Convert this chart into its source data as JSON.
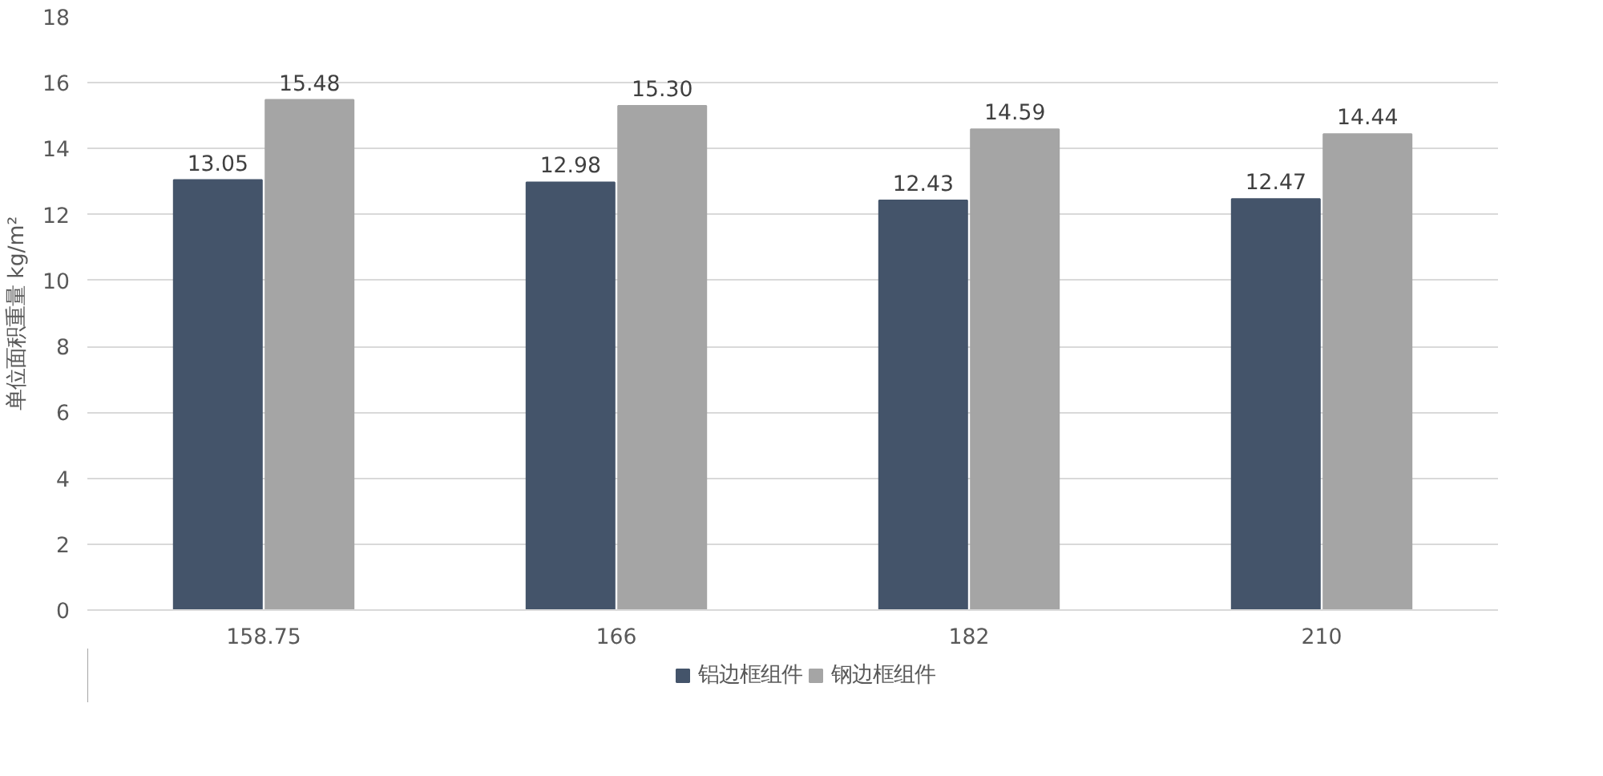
{
  "chart_data": {
    "type": "bar",
    "ylabel": "单位面积重量 kg/m²",
    "categories": [
      "158.75",
      "166",
      "182",
      "210"
    ],
    "series": [
      {
        "name": "铝边框组件",
        "color": "#44546a",
        "values": [
          13.05,
          12.98,
          12.43,
          12.47
        ],
        "value_labels": [
          "13.05",
          "12.98",
          "12.43",
          "12.47"
        ]
      },
      {
        "name": "钢边框组件",
        "color": "#a5a5a5",
        "values": [
          15.48,
          15.3,
          14.59,
          14.44
        ],
        "value_labels": [
          "15.48",
          "15.30",
          "14.59",
          "14.44"
        ]
      }
    ],
    "ylim": [
      0,
      18
    ],
    "yticks": [
      0,
      2,
      4,
      6,
      8,
      10,
      12,
      14,
      16,
      18
    ],
    "grid": "y",
    "legend": "bottom"
  }
}
